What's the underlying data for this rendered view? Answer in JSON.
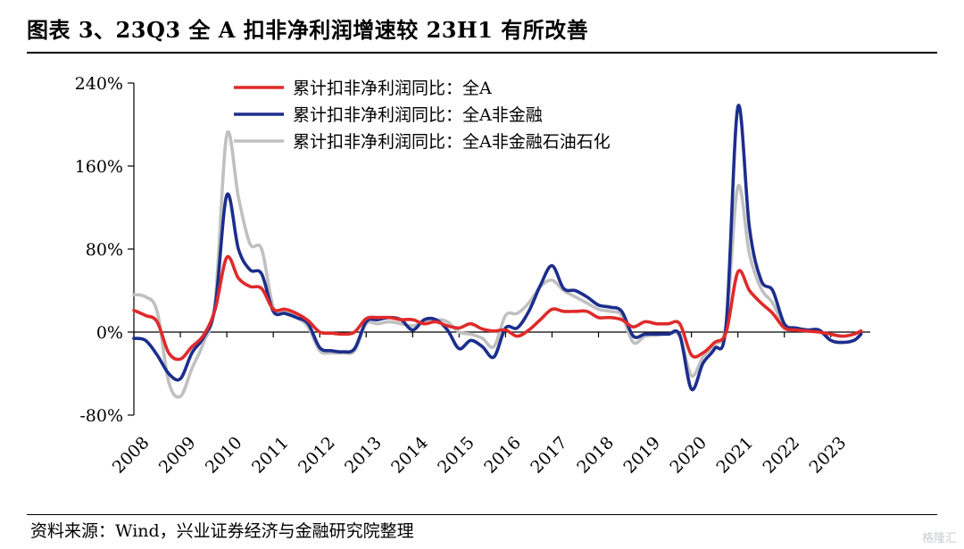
{
  "header": {
    "title": "图表 3、23Q3 全 A 扣非净利润增速较 23H1 有所改善"
  },
  "footer": {
    "source": "资料来源：Wind，兴业证券经济与金融研究院整理",
    "watermark": "格隆汇"
  },
  "chart_data": {
    "type": "line",
    "title": "",
    "xlabel": "",
    "ylabel": "",
    "ylim": [
      -80,
      240
    ],
    "yticks": [
      -80,
      0,
      80,
      160,
      240
    ],
    "ytick_labels": [
      "-80%",
      "0%",
      "80%",
      "160%",
      "240%"
    ],
    "xlim": [
      2008.0,
      2023.85
    ],
    "xticks": [
      2008,
      2009,
      2010,
      2011,
      2012,
      2013,
      2014,
      2015,
      2016,
      2017,
      2018,
      2019,
      2020,
      2021,
      2022,
      2023
    ],
    "xtick_labels": [
      "2008",
      "2009",
      "2010",
      "2011",
      "2012",
      "2013",
      "2014",
      "2015",
      "2016",
      "2017",
      "2018",
      "2019",
      "2020",
      "2021",
      "2022",
      "2023"
    ],
    "grid": false,
    "legend_position": "top-center",
    "series": [
      {
        "name": "累计扣非净利润同比：全A",
        "color": "#e02a2a",
        "points": [
          [
            2008.0,
            21
          ],
          [
            2008.25,
            16
          ],
          [
            2008.5,
            10
          ],
          [
            2008.75,
            -20
          ],
          [
            2009.0,
            -26
          ],
          [
            2009.25,
            -14
          ],
          [
            2009.5,
            -3
          ],
          [
            2009.75,
            22
          ],
          [
            2010.0,
            72
          ],
          [
            2010.25,
            52
          ],
          [
            2010.5,
            44
          ],
          [
            2010.75,
            42
          ],
          [
            2011.0,
            22
          ],
          [
            2011.25,
            22
          ],
          [
            2011.5,
            18
          ],
          [
            2011.75,
            11
          ],
          [
            2012.0,
            0
          ],
          [
            2012.25,
            -1
          ],
          [
            2012.5,
            -2
          ],
          [
            2012.75,
            0
          ],
          [
            2013.0,
            13
          ],
          [
            2013.25,
            14
          ],
          [
            2013.5,
            14
          ],
          [
            2013.75,
            12
          ],
          [
            2014.0,
            12
          ],
          [
            2014.25,
            8
          ],
          [
            2014.5,
            10
          ],
          [
            2014.75,
            6
          ],
          [
            2015.0,
            4
          ],
          [
            2015.25,
            8
          ],
          [
            2015.5,
            3
          ],
          [
            2015.75,
            1
          ],
          [
            2016.0,
            2
          ],
          [
            2016.25,
            -4
          ],
          [
            2016.5,
            2
          ],
          [
            2016.75,
            12
          ],
          [
            2017.0,
            22
          ],
          [
            2017.25,
            20
          ],
          [
            2017.5,
            20
          ],
          [
            2017.75,
            20
          ],
          [
            2018.0,
            14
          ],
          [
            2018.25,
            14
          ],
          [
            2018.5,
            12
          ],
          [
            2018.75,
            5
          ],
          [
            2019.0,
            10
          ],
          [
            2019.25,
            8
          ],
          [
            2019.5,
            8
          ],
          [
            2019.75,
            8
          ],
          [
            2020.0,
            -22
          ],
          [
            2020.25,
            -20
          ],
          [
            2020.5,
            -10
          ],
          [
            2020.75,
            0
          ],
          [
            2021.0,
            58
          ],
          [
            2021.25,
            40
          ],
          [
            2021.5,
            28
          ],
          [
            2021.75,
            18
          ],
          [
            2022.0,
            4
          ],
          [
            2022.25,
            2
          ],
          [
            2022.5,
            1
          ],
          [
            2022.75,
            0
          ],
          [
            2023.0,
            -2
          ],
          [
            2023.25,
            -4
          ],
          [
            2023.5,
            -2
          ],
          [
            2023.65,
            1
          ]
        ]
      },
      {
        "name": "累计扣非净利润同比：全A非金融",
        "color": "#1c2e8c",
        "points": [
          [
            2008.0,
            -6
          ],
          [
            2008.25,
            -8
          ],
          [
            2008.5,
            -22
          ],
          [
            2008.75,
            -40
          ],
          [
            2009.0,
            -45
          ],
          [
            2009.25,
            -20
          ],
          [
            2009.5,
            -5
          ],
          [
            2009.75,
            25
          ],
          [
            2010.0,
            132
          ],
          [
            2010.25,
            80
          ],
          [
            2010.5,
            60
          ],
          [
            2010.75,
            56
          ],
          [
            2011.0,
            20
          ],
          [
            2011.25,
            18
          ],
          [
            2011.5,
            14
          ],
          [
            2011.75,
            8
          ],
          [
            2012.0,
            -15
          ],
          [
            2012.25,
            -18
          ],
          [
            2012.5,
            -19
          ],
          [
            2012.75,
            -16
          ],
          [
            2013.0,
            10
          ],
          [
            2013.25,
            12
          ],
          [
            2013.5,
            14
          ],
          [
            2013.75,
            12
          ],
          [
            2014.0,
            2
          ],
          [
            2014.25,
            12
          ],
          [
            2014.5,
            12
          ],
          [
            2014.75,
            2
          ],
          [
            2015.0,
            -16
          ],
          [
            2015.25,
            -8
          ],
          [
            2015.5,
            -14
          ],
          [
            2015.75,
            -24
          ],
          [
            2016.0,
            4
          ],
          [
            2016.25,
            4
          ],
          [
            2016.5,
            20
          ],
          [
            2016.75,
            45
          ],
          [
            2017.0,
            64
          ],
          [
            2017.25,
            42
          ],
          [
            2017.5,
            40
          ],
          [
            2017.75,
            34
          ],
          [
            2018.0,
            26
          ],
          [
            2018.25,
            24
          ],
          [
            2018.5,
            20
          ],
          [
            2018.75,
            -4
          ],
          [
            2019.0,
            -2
          ],
          [
            2019.25,
            -2
          ],
          [
            2019.5,
            -2
          ],
          [
            2019.75,
            -3
          ],
          [
            2020.0,
            -55
          ],
          [
            2020.25,
            -30
          ],
          [
            2020.5,
            -16
          ],
          [
            2020.75,
            8
          ],
          [
            2021.0,
            217
          ],
          [
            2021.25,
            100
          ],
          [
            2021.5,
            50
          ],
          [
            2021.75,
            40
          ],
          [
            2022.0,
            8
          ],
          [
            2022.25,
            4
          ],
          [
            2022.5,
            2
          ],
          [
            2022.75,
            2
          ],
          [
            2023.0,
            -8
          ],
          [
            2023.25,
            -10
          ],
          [
            2023.5,
            -8
          ],
          [
            2023.65,
            -2
          ]
        ]
      },
      {
        "name": "累计扣非净利润同比：全A非金融石油石化",
        "color": "#c0c0c0",
        "points": [
          [
            2008.0,
            36
          ],
          [
            2008.25,
            34
          ],
          [
            2008.5,
            20
          ],
          [
            2008.75,
            -48
          ],
          [
            2009.0,
            -62
          ],
          [
            2009.25,
            -35
          ],
          [
            2009.5,
            -10
          ],
          [
            2009.75,
            30
          ],
          [
            2010.0,
            190
          ],
          [
            2010.25,
            130
          ],
          [
            2010.5,
            85
          ],
          [
            2010.75,
            80
          ],
          [
            2011.0,
            24
          ],
          [
            2011.25,
            20
          ],
          [
            2011.5,
            14
          ],
          [
            2011.75,
            5
          ],
          [
            2012.0,
            -18
          ],
          [
            2012.25,
            -20
          ],
          [
            2012.5,
            -20
          ],
          [
            2012.75,
            -18
          ],
          [
            2013.0,
            8
          ],
          [
            2013.25,
            8
          ],
          [
            2013.5,
            10
          ],
          [
            2013.75,
            8
          ],
          [
            2014.0,
            6
          ],
          [
            2014.25,
            10
          ],
          [
            2014.5,
            12
          ],
          [
            2014.75,
            10
          ],
          [
            2015.0,
            0
          ],
          [
            2015.25,
            -2
          ],
          [
            2015.5,
            -6
          ],
          [
            2015.75,
            -14
          ],
          [
            2016.0,
            16
          ],
          [
            2016.25,
            18
          ],
          [
            2016.5,
            28
          ],
          [
            2016.75,
            44
          ],
          [
            2017.0,
            50
          ],
          [
            2017.25,
            40
          ],
          [
            2017.5,
            34
          ],
          [
            2017.75,
            28
          ],
          [
            2018.0,
            22
          ],
          [
            2018.25,
            20
          ],
          [
            2018.5,
            16
          ],
          [
            2018.75,
            -10
          ],
          [
            2019.0,
            -4
          ],
          [
            2019.25,
            -3
          ],
          [
            2019.5,
            -2
          ],
          [
            2019.75,
            -4
          ],
          [
            2020.0,
            -42
          ],
          [
            2020.25,
            -24
          ],
          [
            2020.5,
            -12
          ],
          [
            2020.75,
            8
          ],
          [
            2021.0,
            140
          ],
          [
            2021.25,
            75
          ],
          [
            2021.5,
            42
          ],
          [
            2021.75,
            28
          ],
          [
            2022.0,
            6
          ],
          [
            2022.25,
            3
          ],
          [
            2022.5,
            1
          ],
          [
            2022.75,
            1
          ],
          [
            2023.0,
            -8
          ],
          [
            2023.25,
            -10
          ],
          [
            2023.5,
            -8
          ],
          [
            2023.65,
            -2
          ]
        ]
      }
    ]
  }
}
